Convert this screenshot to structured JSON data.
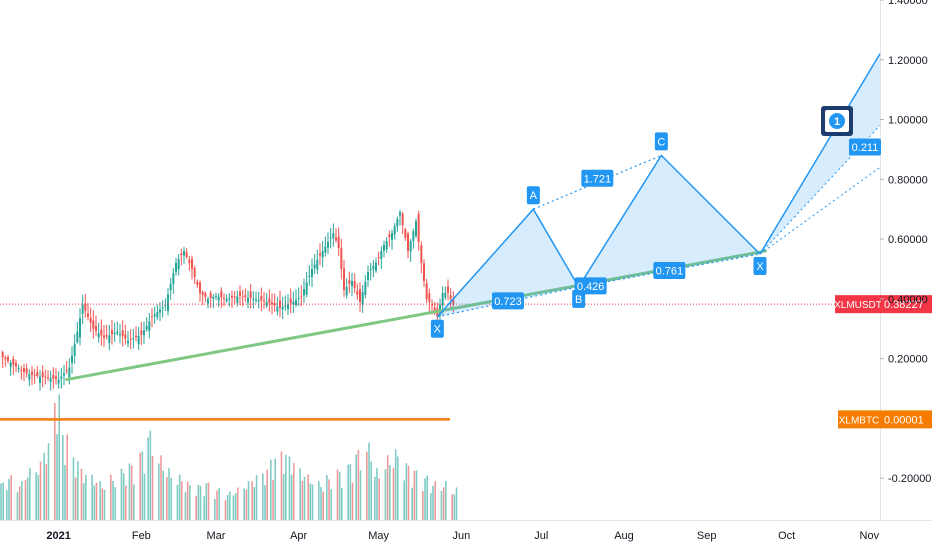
{
  "chart_data": {
    "type": "candlestick",
    "x_axis": {
      "ticks": [
        {
          "label": "2021",
          "date": "2021-01-01"
        },
        {
          "label": "Feb",
          "date": "2021-02-01"
        },
        {
          "label": "Mar",
          "date": "2021-03-01"
        },
        {
          "label": "Apr",
          "date": "2021-04-01"
        },
        {
          "label": "May",
          "date": "2021-05-01"
        },
        {
          "label": "Jun",
          "date": "2021-06-01"
        },
        {
          "label": "Jul",
          "date": "2021-07-01"
        },
        {
          "label": "Aug",
          "date": "2021-08-01"
        },
        {
          "label": "Sep",
          "date": "2021-09-01"
        },
        {
          "label": "Oct",
          "date": "2021-10-01"
        },
        {
          "label": "Nov",
          "date": "2021-11-01"
        }
      ],
      "range": [
        "2020-12-10",
        "2021-11-05"
      ]
    },
    "y_axis": {
      "ticks": [
        "1.40000",
        "1.20000",
        "1.00000",
        "0.80000",
        "0.60000",
        "0.40000",
        "0.20000",
        "-0.20000"
      ],
      "tick_values": [
        1.4,
        1.2,
        1.0,
        0.8,
        0.6,
        0.4,
        0.2,
        -0.2
      ],
      "range": [
        -0.34,
        1.4
      ]
    },
    "price_series": {
      "name": "XLMUSDT",
      "last_value": "0.38227",
      "color": "#f23645",
      "points": [
        [
          "2020-12-10",
          0.21
        ],
        [
          "2020-12-15",
          0.18
        ],
        [
          "2020-12-20",
          0.15
        ],
        [
          "2020-12-25",
          0.14
        ],
        [
          "2021-01-01",
          0.13
        ],
        [
          "2021-01-05",
          0.17
        ],
        [
          "2021-01-08",
          0.29
        ],
        [
          "2021-01-10",
          0.38
        ],
        [
          "2021-01-14",
          0.3
        ],
        [
          "2021-01-18",
          0.27
        ],
        [
          "2021-01-23",
          0.29
        ],
        [
          "2021-01-27",
          0.26
        ],
        [
          "2021-02-01",
          0.28
        ],
        [
          "2021-02-05",
          0.34
        ],
        [
          "2021-02-10",
          0.38
        ],
        [
          "2021-02-14",
          0.52
        ],
        [
          "2021-02-17",
          0.56
        ],
        [
          "2021-02-20",
          0.5
        ],
        [
          "2021-02-23",
          0.42
        ],
        [
          "2021-02-26",
          0.4
        ],
        [
          "2021-03-01",
          0.41
        ],
        [
          "2021-03-05",
          0.4
        ],
        [
          "2021-03-10",
          0.41
        ],
        [
          "2021-03-15",
          0.4
        ],
        [
          "2021-03-20",
          0.39
        ],
        [
          "2021-03-25",
          0.37
        ],
        [
          "2021-03-30",
          0.39
        ],
        [
          "2021-04-02",
          0.41
        ],
        [
          "2021-04-06",
          0.5
        ],
        [
          "2021-04-10",
          0.56
        ],
        [
          "2021-04-14",
          0.62
        ],
        [
          "2021-04-16",
          0.57
        ],
        [
          "2021-04-18",
          0.43
        ],
        [
          "2021-04-21",
          0.46
        ],
        [
          "2021-04-24",
          0.39
        ],
        [
          "2021-04-27",
          0.49
        ],
        [
          "2021-04-30",
          0.52
        ],
        [
          "2021-05-03",
          0.58
        ],
        [
          "2021-05-06",
          0.62
        ],
        [
          "2021-05-09",
          0.69
        ],
        [
          "2021-05-12",
          0.56
        ],
        [
          "2021-05-15",
          0.66
        ],
        [
          "2021-05-17",
          0.52
        ],
        [
          "2021-05-19",
          0.4
        ],
        [
          "2021-05-21",
          0.38
        ],
        [
          "2021-05-23",
          0.34
        ],
        [
          "2021-05-25",
          0.42
        ],
        [
          "2021-05-27",
          0.42
        ],
        [
          "2021-05-29",
          0.38
        ]
      ]
    },
    "volume": {
      "values": [
        0.3,
        0.35,
        0.3,
        0.4,
        0.45,
        0.6,
        1.0,
        0.7,
        0.5,
        0.4,
        0.35,
        0.3,
        0.35,
        0.4,
        0.45,
        0.55,
        0.7,
        0.5,
        0.4,
        0.35,
        0.3,
        0.28,
        0.3,
        0.25,
        0.22,
        0.25,
        0.3,
        0.35,
        0.4,
        0.5,
        0.55,
        0.5,
        0.4,
        0.35,
        0.3,
        0.35,
        0.4,
        0.45,
        0.55,
        0.6,
        0.4,
        0.5,
        0.55,
        0.45,
        0.4,
        0.35,
        0.3,
        0.3,
        0.25
      ]
    },
    "secondary_series": {
      "name": "XLMBTC",
      "last_value": "0.00001",
      "color": "#f57c00",
      "value": 0.0
    },
    "trendline": {
      "color": "#81c784",
      "points": [
        [
          "2021-01-04",
          0.13
        ],
        [
          "2021-09-23",
          0.56
        ]
      ]
    },
    "harmonic_pattern_1": {
      "points": [
        {
          "label": "X",
          "date": "2021-05-23",
          "value": 0.34
        },
        {
          "label": "A",
          "date": "2021-06-28",
          "value": 0.7
        },
        {
          "label": "B",
          "date": "2021-07-15",
          "value": 0.44
        },
        {
          "label": "C",
          "date": "2021-08-15",
          "value": 0.88
        },
        {
          "label": "X",
          "date": "2021-09-21",
          "value": 0.55
        }
      ],
      "ratios": [
        "0.723",
        "0.426",
        "1.721",
        "0.761"
      ]
    },
    "harmonic_pattern_2": {
      "start": {
        "date": "2021-09-21",
        "value": 0.55
      },
      "rays_to": [
        {
          "date": "2021-11-05",
          "value": 1.22
        },
        {
          "date": "2021-11-05",
          "value": 0.98
        },
        {
          "date": "2021-11-05",
          "value": 0.84
        }
      ],
      "ratio": "0.211",
      "marker": "1"
    }
  }
}
